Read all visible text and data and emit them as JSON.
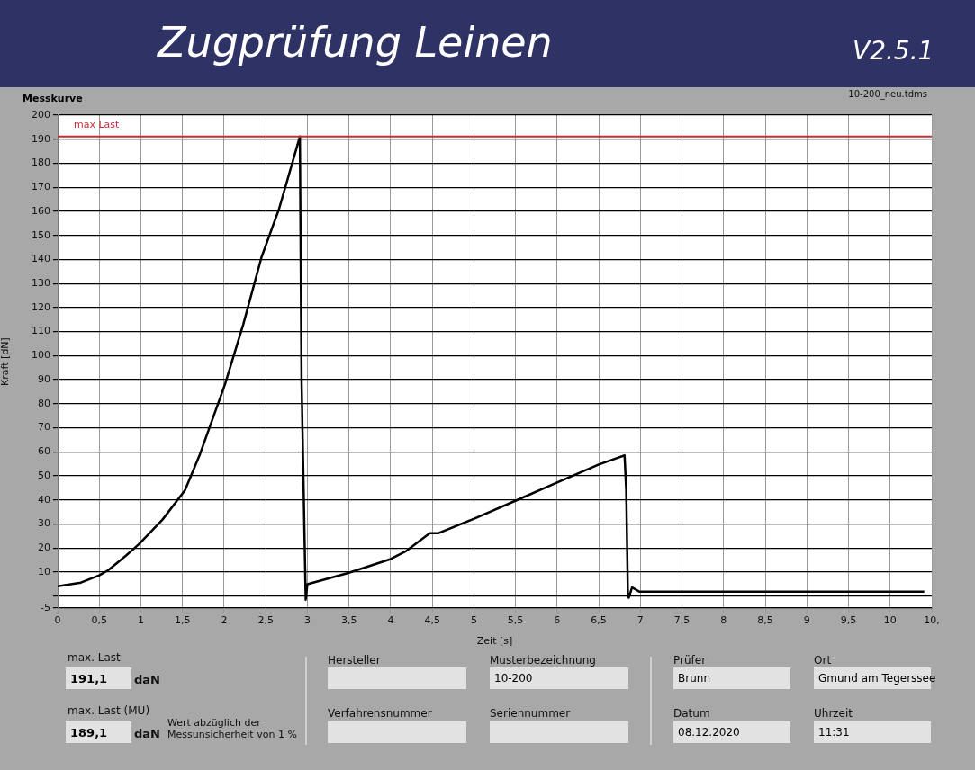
{
  "chart_data": {
    "type": "line",
    "title": "Zugprüfung Leinen",
    "subtitle": "Messkurve",
    "xlabel": "Zeit [s]",
    "ylabel": "Kraft [dN]",
    "xlim": [
      0,
      10.5
    ],
    "xticks": [
      0,
      {
        "value": 0.5,
        "label": "0,5"
      },
      1,
      {
        "value": 1.5,
        "label": "1,5"
      },
      2,
      {
        "value": 2.5,
        "label": "2,5"
      },
      3,
      {
        "value": 3.5,
        "label": "3,5"
      },
      4,
      {
        "value": 4.5,
        "label": "4,5"
      },
      5,
      {
        "value": 5.5,
        "label": "5,5"
      },
      6,
      {
        "value": 6.5,
        "label": "6,5"
      },
      7,
      {
        "value": 7.5,
        "label": "7,5"
      },
      8,
      {
        "value": 8.5,
        "label": "8,5"
      },
      9,
      {
        "value": 9.5,
        "label": "9,5"
      },
      10,
      {
        "value": 10.5,
        "label": "10,"
      }
    ],
    "ylim": [
      -5,
      200
    ],
    "yticks": [
      -5,
      {
        "value": 0,
        "label": null
      },
      10,
      20,
      30,
      40,
      50,
      60,
      70,
      80,
      90,
      100,
      110,
      120,
      130,
      140,
      150,
      160,
      170,
      180,
      190,
      200
    ],
    "grid": true,
    "marker": "none",
    "line_style": "solid",
    "series": [
      {
        "color": "#000000",
        "x": [
          0,
          0.28,
          0.5,
          0.61,
          0.82,
          0.98,
          1.26,
          1.53,
          1.71,
          2.01,
          2.23,
          2.45,
          2.66,
          2.91,
          2.93,
          2.98,
          3.0,
          3.49,
          4.0,
          4.18,
          4.47,
          4.57,
          5.01,
          5.51,
          6.0,
          6.5,
          6.81,
          6.83,
          6.85,
          6.86,
          6.9,
          6.99,
          7.5,
          8,
          8.5,
          9,
          9.5,
          10,
          10.41
        ],
        "values": [
          4.1,
          5.6,
          8.6,
          10.8,
          16.8,
          21.7,
          31.8,
          44,
          59,
          88,
          113,
          141,
          161,
          191.1,
          90,
          -1.5,
          4.9,
          9.6,
          15.4,
          18.6,
          26.1,
          26.1,
          32.3,
          39.8,
          47.2,
          54.7,
          58.5,
          43.9,
          -0.1,
          -0.7,
          3.6,
          1.8,
          1.8,
          1.8,
          1.8,
          1.8,
          1.8,
          1.8,
          1.8
        ]
      }
    ],
    "ref_lines": [
      {
        "axis": "y",
        "value": 191.1,
        "label": "max Last",
        "color": "#c0303a"
      }
    ],
    "annotations": [
      "max. Last",
      "191,1",
      "daN",
      "max. Last (MU)",
      "189,1",
      "daN",
      "Wert abzüglich der Messunsicherheit von 1 %",
      "Hersteller",
      "Musterbezeichnung",
      "10-200",
      "Verfahrensnummer",
      "Seriennummer",
      "Prüfer",
      "Brunn",
      "Ort",
      "Gmund am Tegerssee",
      "Datum",
      "08.12.2020",
      "Uhrzeit",
      "11:31",
      "V2.5.1",
      "10-200_neu.tdms"
    ]
  }
}
